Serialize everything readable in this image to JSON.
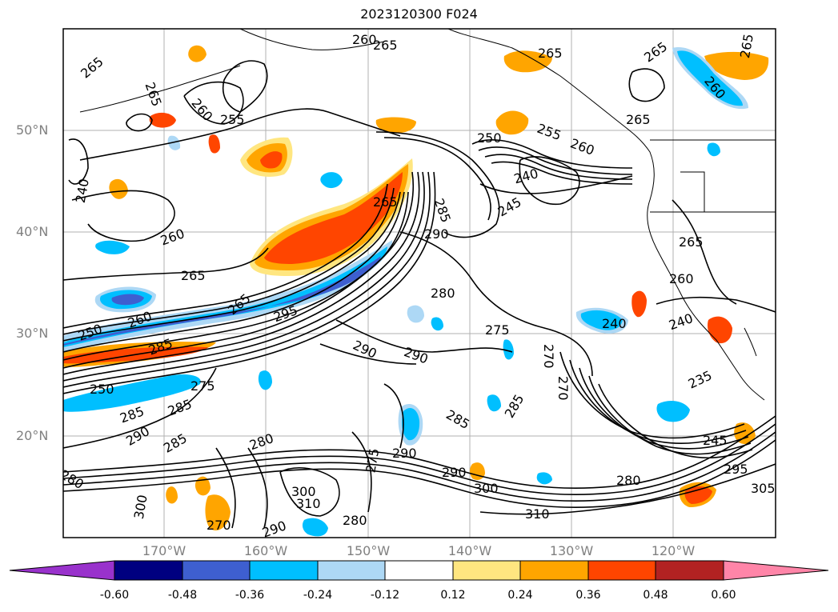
{
  "title": "2023120300 F024",
  "lat_labels": [
    "50°N",
    "40°N",
    "30°N",
    "20°N"
  ],
  "lon_labels": [
    "170°W",
    "160°W",
    "150°W",
    "140°W",
    "130°W",
    "120°W"
  ],
  "colorbar": {
    "ticks": [
      "-0.60",
      "-0.48",
      "-0.36",
      "-0.24",
      "-0.12",
      "0.12",
      "0.24",
      "0.36",
      "0.48",
      "0.60"
    ],
    "colors": [
      "#9932cc",
      "#000080",
      "#3e5fd0",
      "#00bfff",
      "#add8f5",
      "#ffffff",
      "#ffe680",
      "#ffa500",
      "#ff4500",
      "#b22222",
      "#ff85a8"
    ]
  },
  "contour_labels": [
    "265",
    "260",
    "265",
    "265",
    "260",
    "255",
    "265",
    "250",
    "255",
    "260",
    "240",
    "245",
    "265",
    "265",
    "265",
    "260",
    "240",
    "290",
    "265",
    "260",
    "265",
    "250",
    "260",
    "285",
    "250",
    "285",
    "285",
    "290",
    "275",
    "285",
    "280",
    "300",
    "300",
    "290",
    "310",
    "290",
    "275",
    "280",
    "295",
    "290",
    "290",
    "280",
    "290",
    "270",
    "285",
    "240",
    "275",
    "235",
    "245",
    "295",
    "305",
    "280",
    "300",
    "310",
    "270",
    "280",
    "270",
    "285",
    "240",
    "260",
    "265",
    "265",
    "285"
  ]
}
